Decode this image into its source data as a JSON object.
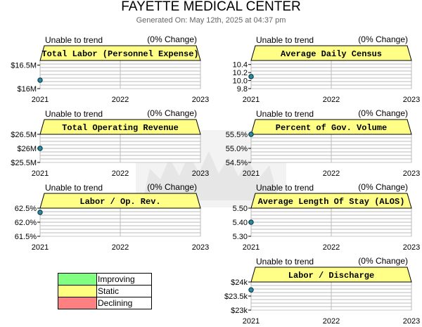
{
  "title": "FAYETTE MEDICAL CENTER",
  "subtitle": "Generated On: May 12th, 2025 at 04:37 pm",
  "colors": {
    "header_fill": "#ffff88",
    "grid_line": "#bbbbbb",
    "marker": "#2a8aa0",
    "watermark": "#e8e8e8"
  },
  "legend": [
    {
      "label": "Improving",
      "color": "#80ff80"
    },
    {
      "label": "Static",
      "color": "#ffff80"
    },
    {
      "label": "Declining",
      "color": "#ff8080"
    }
  ],
  "chart_data": [
    {
      "type": "line",
      "title": "Total Labor (Personnel Expense)",
      "status": "Unable to trend",
      "change": "(0% Change)",
      "x": [
        "2021",
        "2022",
        "2023"
      ],
      "yticks": [
        "$16.5M",
        "$16M"
      ],
      "ylim": [
        16.0,
        16.6
      ],
      "tickvals": [
        16.5,
        16.0
      ],
      "points": [
        {
          "x": "2021",
          "y": 16.18
        }
      ]
    },
    {
      "type": "line",
      "title": "Average Daily Census",
      "status": "Unable to trend",
      "change": "(0% Change)",
      "x": [
        "2021",
        "2022",
        "2023"
      ],
      "yticks": [
        "10.4",
        "10.2",
        "10.0",
        "9.8"
      ],
      "ylim": [
        9.8,
        10.5
      ],
      "tickvals": [
        10.4,
        10.2,
        10.0,
        9.8
      ],
      "points": [
        {
          "x": "2021",
          "y": 10.1
        }
      ]
    },
    {
      "type": "line",
      "title": "Total Operating Revenue",
      "status": "Unable to trend",
      "change": "(0% Change)",
      "x": [
        "2021",
        "2022",
        "2023"
      ],
      "yticks": [
        "$26.5M",
        "$26M",
        "$25.5M"
      ],
      "ylim": [
        25.5,
        26.5
      ],
      "tickvals": [
        26.5,
        26.0,
        25.5
      ],
      "points": [
        {
          "x": "2021",
          "y": 26.0
        }
      ]
    },
    {
      "type": "line",
      "title": "Percent of Gov. Volume",
      "status": "Unable to trend",
      "change": "(0% Change)",
      "x": [
        "2021",
        "2022",
        "2023"
      ],
      "yticks": [
        "55.5%",
        "55.0%",
        "54.5%"
      ],
      "ylim": [
        54.5,
        55.5
      ],
      "tickvals": [
        55.5,
        55.0,
        54.5
      ],
      "points": [
        {
          "x": "2021",
          "y": 55.5
        }
      ]
    },
    {
      "type": "line",
      "title": "Labor / Op. Rev.",
      "status": "Unable to trend",
      "change": "(0% Change)",
      "x": [
        "2021",
        "2022",
        "2023"
      ],
      "yticks": [
        "62.5%",
        "62.0%",
        "61.5%"
      ],
      "ylim": [
        61.5,
        62.5
      ],
      "tickvals": [
        62.5,
        62.0,
        61.5
      ],
      "points": [
        {
          "x": "2021",
          "y": 62.35
        }
      ]
    },
    {
      "type": "line",
      "title": "Average Length Of Stay (ALOS)",
      "status": "Unable to trend",
      "change": "(0% Change)",
      "x": [
        "2021",
        "2022",
        "2023"
      ],
      "yticks": [
        "5.50",
        "5.40",
        "5.30"
      ],
      "ylim": [
        5.3,
        5.5
      ],
      "tickvals": [
        5.5,
        5.4,
        5.3
      ],
      "points": [
        {
          "x": "2021",
          "y": 5.4
        }
      ]
    },
    {
      "type": "line",
      "title": "Labor / Discharge",
      "status": "Unable to trend",
      "change": "(0% Change)",
      "x": [
        "2021",
        "2022",
        "2023"
      ],
      "yticks": [
        "$24k",
        "$23.5k",
        "$23k"
      ],
      "ylim": [
        23.0,
        24.0
      ],
      "tickvals": [
        24.0,
        23.5,
        23.0
      ],
      "points": [
        {
          "x": "2021",
          "y": 23.72
        }
      ]
    }
  ]
}
